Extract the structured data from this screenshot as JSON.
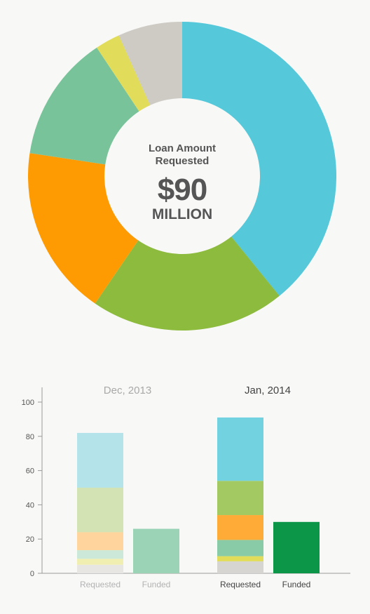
{
  "donut": {
    "center_label": "Loan Amount Requested",
    "center_value": "$90",
    "center_unit": "MILLION",
    "slices": [
      {
        "value": 36.0,
        "color": "#55c8d9"
      },
      {
        "value": 18.8,
        "color": "#8dbb3e"
      },
      {
        "value": 16.4,
        "color": "#ff9b02"
      },
      {
        "value": 12.2,
        "color": "#78c399"
      },
      {
        "value": 2.4,
        "color": "#e1dc5a"
      },
      {
        "value": 6.2,
        "color": "#cecbc5"
      }
    ]
  },
  "chart_data": {
    "type": "bar",
    "subtype": "stacked-grouped",
    "ylim": [
      0,
      100
    ],
    "yticks": [
      0,
      20,
      40,
      60,
      80,
      100
    ],
    "groups": [
      {
        "title": "Dec, 2013",
        "faded": true,
        "bars": [
          {
            "label": "Requested",
            "total": 82,
            "segments": [
              {
                "value": 5,
                "color": "#e8e6e2"
              },
              {
                "value": 3.5,
                "color": "#f1eeb2"
              },
              {
                "value": 5,
                "color": "#cbe8d8"
              },
              {
                "value": 10.5,
                "color": "#ffd49d"
              },
              {
                "value": 26,
                "color": "#d3e3b3"
              },
              {
                "value": 32,
                "color": "#b5e3ea"
              }
            ]
          },
          {
            "label": "Funded",
            "total": 26,
            "segments": [
              {
                "value": 26,
                "color": "#9ad3b5"
              }
            ]
          }
        ]
      },
      {
        "title": "Jan, 2014",
        "faded": false,
        "bars": [
          {
            "label": "Requested",
            "total": 91,
            "segments": [
              {
                "value": 7,
                "color": "#d7d5d1"
              },
              {
                "value": 3,
                "color": "#e1dc5a"
              },
              {
                "value": 9.5,
                "color": "#89cba7"
              },
              {
                "value": 14.5,
                "color": "#ffab37"
              },
              {
                "value": 20,
                "color": "#a3c962"
              },
              {
                "value": 37,
                "color": "#72d2e0"
              }
            ]
          },
          {
            "label": "Funded",
            "total": 30,
            "segments": [
              {
                "value": 30,
                "color": "#0c9648"
              }
            ]
          }
        ]
      }
    ]
  }
}
